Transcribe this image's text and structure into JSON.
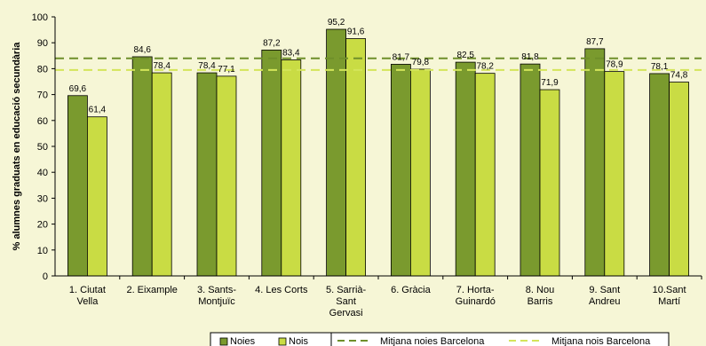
{
  "colors": {
    "noies": "#7a9a2e",
    "nois": "#c9dc44",
    "avg_noies": "#6f8f2a",
    "avg_nois": "#d4e55a",
    "background": "#f6f6d6"
  },
  "chart_data": {
    "type": "bar",
    "title": "",
    "ylabel": "% alumnes graduats en educació secundària",
    "xlabel": "",
    "ylim": [
      0,
      100
    ],
    "yticks": [
      0,
      10,
      20,
      30,
      40,
      50,
      60,
      70,
      80,
      90,
      100
    ],
    "grid": false,
    "legend_position": "bottom",
    "categories": [
      [
        "1. Ciutat",
        "Vella"
      ],
      [
        "2. Eixample"
      ],
      [
        "3. Sants-",
        "Montjuïc"
      ],
      [
        "4. Les Corts"
      ],
      [
        "5. Sarrià-",
        "Sant",
        "Gervasi"
      ],
      [
        "6. Gràcia"
      ],
      [
        "7. Horta-",
        "Guinardó"
      ],
      [
        "8. Nou",
        "Barris"
      ],
      [
        "9. Sant",
        "Andreu"
      ],
      [
        "10.Sant",
        "Martí"
      ]
    ],
    "series": [
      {
        "name": "Noies",
        "values": [
          69.6,
          84.6,
          78.4,
          87.2,
          95.2,
          81.7,
          82.5,
          81.8,
          87.7,
          78.1
        ],
        "labels": [
          "69,6",
          "84,6",
          "78,4",
          "87,2",
          "95,2",
          "81,7",
          "82,5",
          "81,8",
          "87,7",
          "78,1"
        ]
      },
      {
        "name": "Nois",
        "values": [
          61.4,
          78.4,
          77.1,
          83.4,
          91.6,
          79.8,
          78.2,
          71.9,
          78.9,
          74.8
        ],
        "labels": [
          "61,4",
          "78,4",
          "77,1",
          "83,4",
          "91,6",
          "79,8",
          "78,2",
          "71,9",
          "78,9",
          "74,8"
        ]
      }
    ],
    "reference_lines": [
      {
        "name": "Mitjana noies Barcelona",
        "value": 84.0
      },
      {
        "name": "Mitjana nois Barcelona",
        "value": 79.5
      }
    ]
  }
}
